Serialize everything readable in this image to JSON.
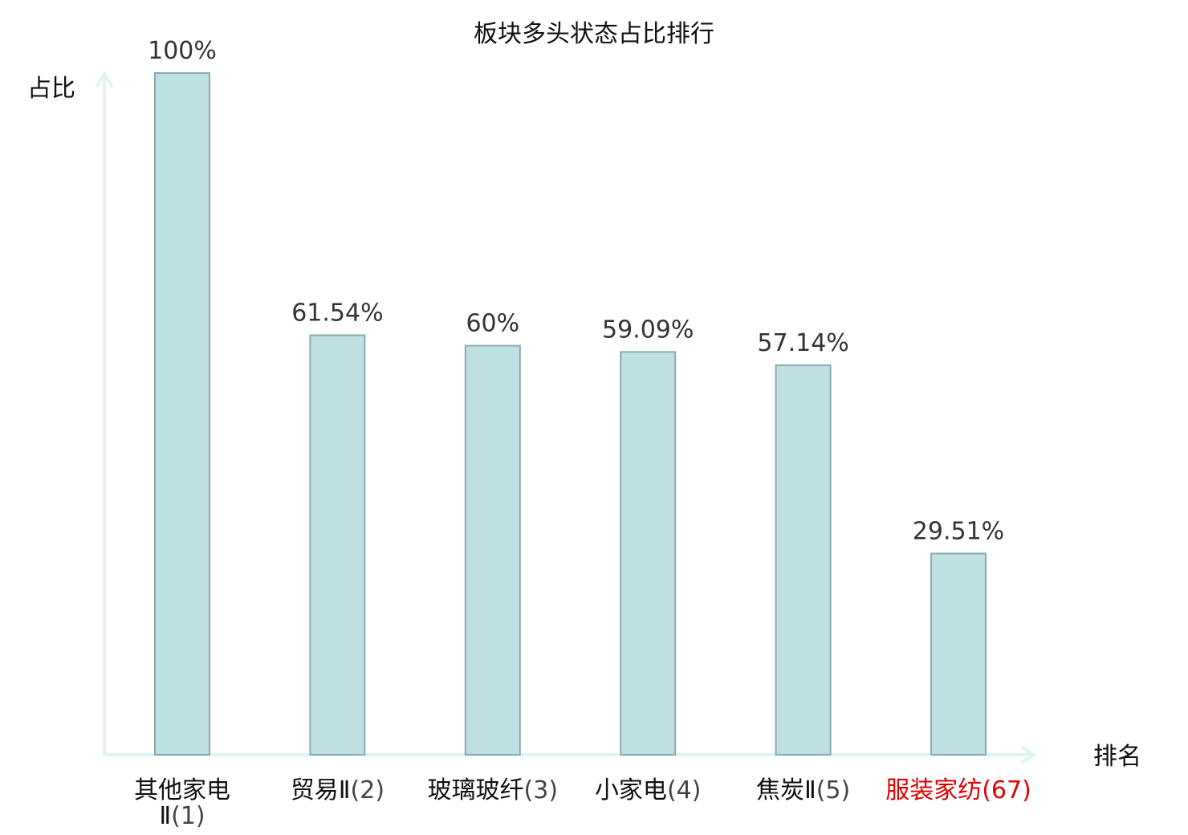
{
  "chart_data": {
    "type": "bar",
    "title": "板块多头状态占比排行",
    "ylabel": "占比",
    "xlabel": "排名",
    "categories": [
      "其他家电Ⅱ",
      "贸易Ⅱ",
      "玻璃玻纤",
      "小家电",
      "焦炭Ⅱ",
      "服装家纺"
    ],
    "ranks": [
      "(1)",
      "(2)",
      "(3)",
      "(4)",
      "(5)",
      "(67)"
    ],
    "values": [
      100,
      61.54,
      60,
      59.09,
      57.14,
      29.51
    ],
    "value_labels": [
      "100%",
      "61.54%",
      "60%",
      "59.09%",
      "57.14%",
      "29.51%"
    ],
    "highlight_index": 5,
    "ylim": [
      0,
      100
    ],
    "grid": false,
    "legend": "none",
    "colors": {
      "bar_fill": "#bde0e3",
      "bar_stroke": "#8aaaad",
      "axis": "#dff3f1",
      "text": "#111111",
      "value_text": "#333333",
      "highlight": "#e00000"
    }
  }
}
